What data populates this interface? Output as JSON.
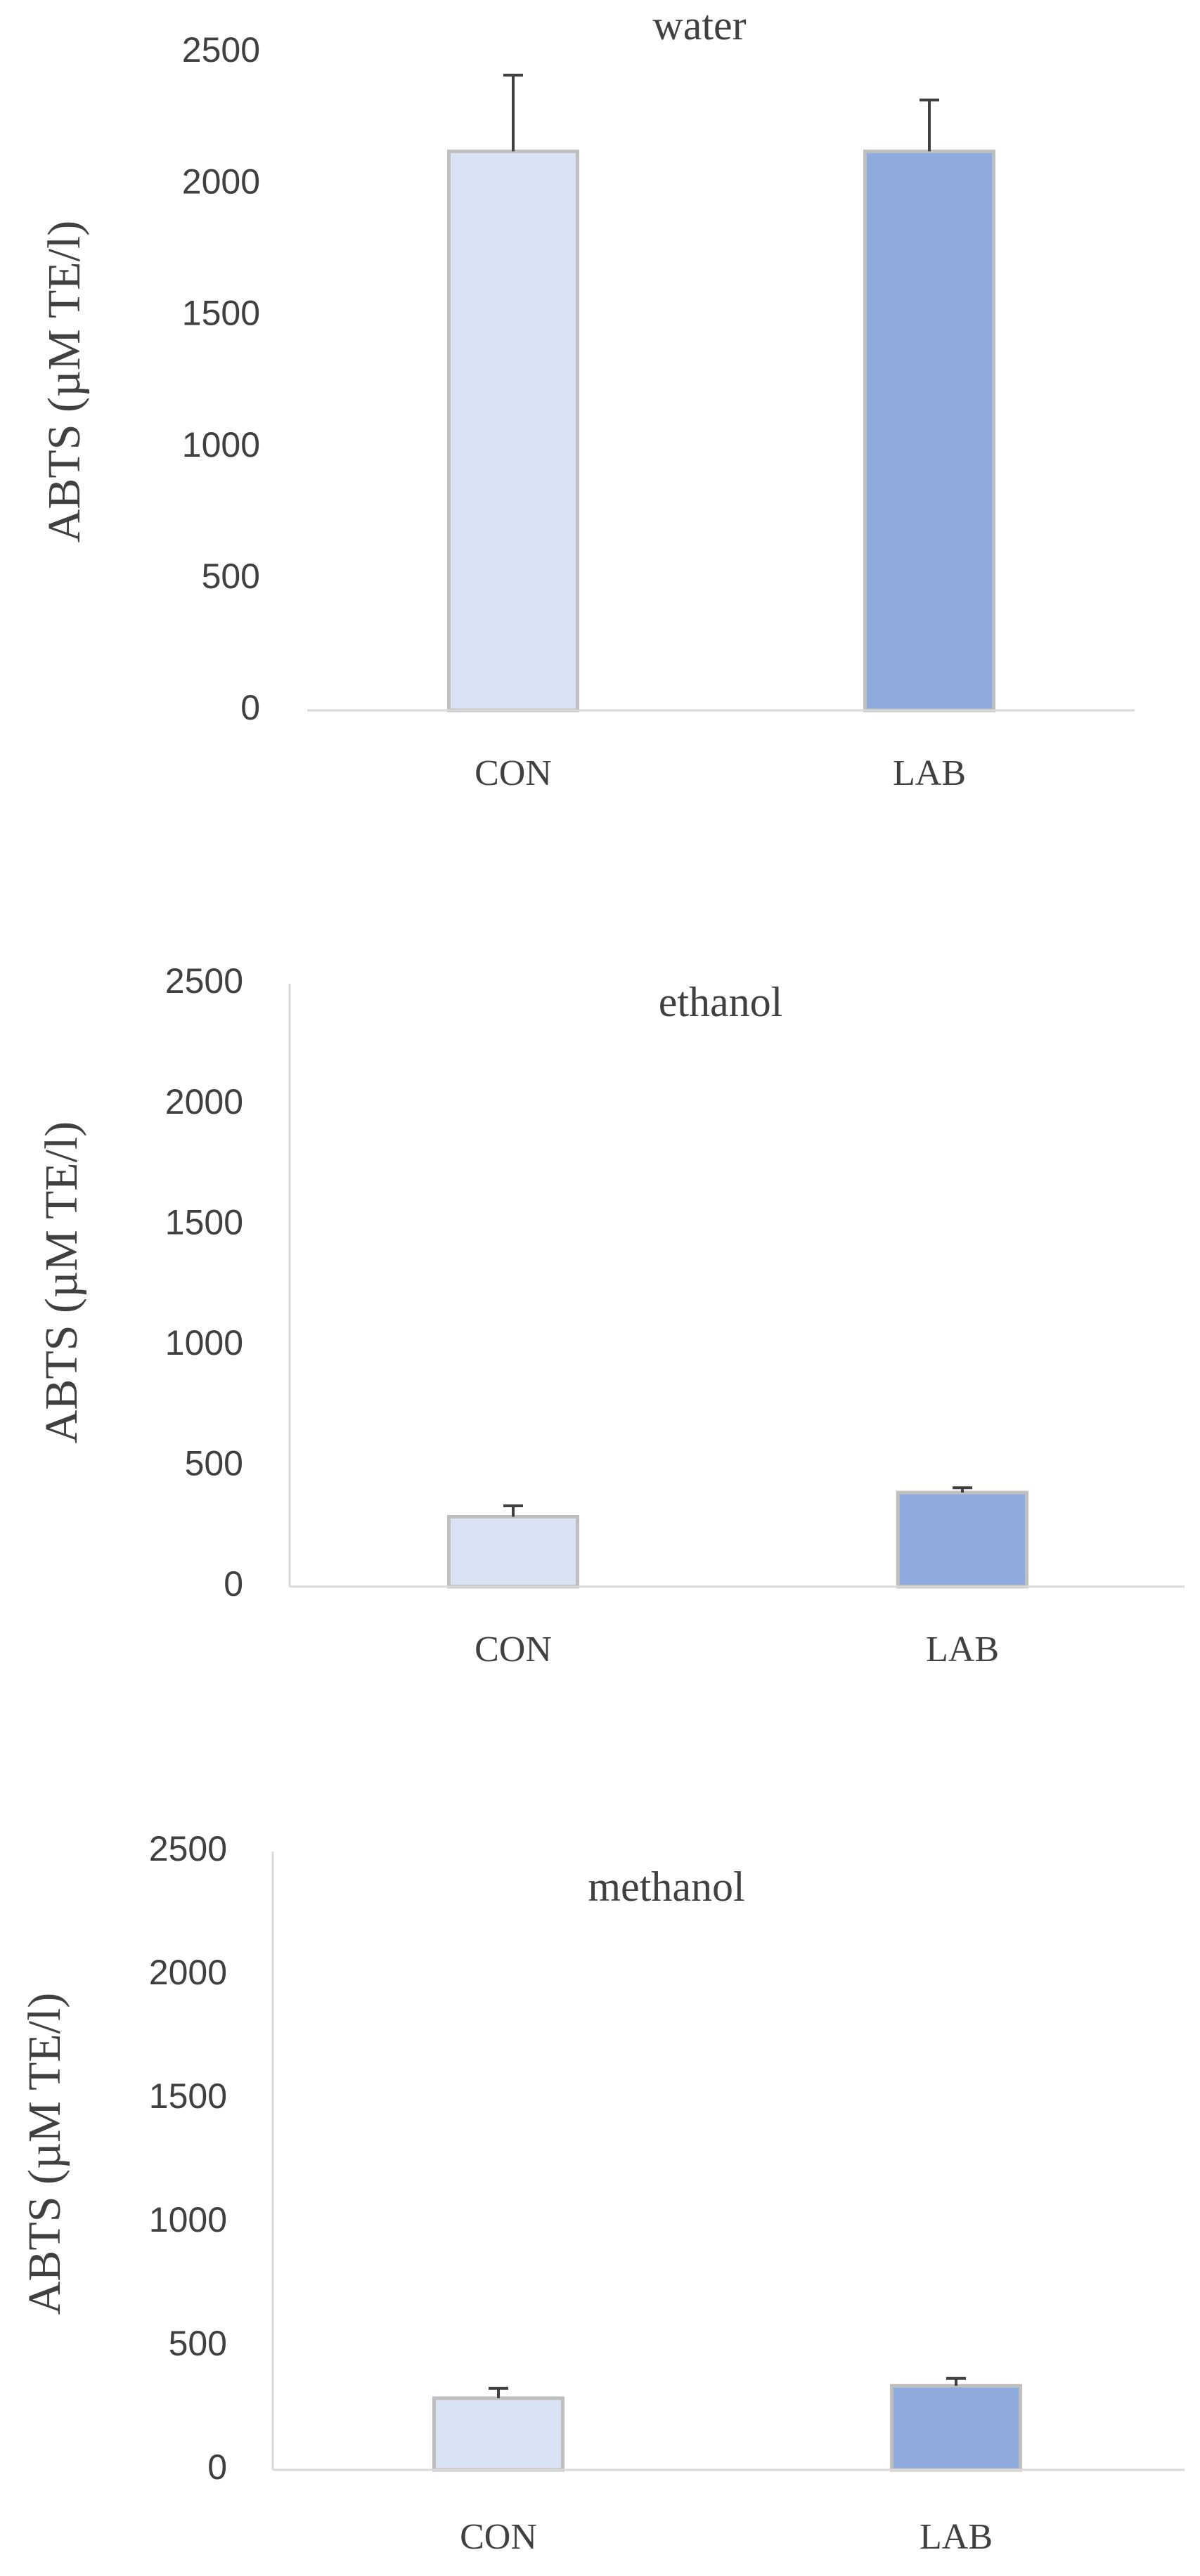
{
  "chart_data": [
    {
      "type": "bar",
      "title": "water",
      "y_label": "ABTS (µM TE/l)",
      "categories": [
        "CON",
        "LAB"
      ],
      "values": [
        2125,
        2125
      ],
      "errors": [
        290,
        195
      ],
      "colors": [
        "#dae3f3",
        "#8faadc"
      ],
      "ylim": [
        0,
        2500
      ],
      "yticks": [
        0,
        500,
        1000,
        1500,
        2000,
        2500
      ],
      "y_axis_line": false
    },
    {
      "type": "bar",
      "title": "ethanol",
      "y_label": "ABTS (µM TE/l)",
      "categories": [
        "CON",
        "LAB"
      ],
      "values": [
        290,
        390
      ],
      "errors": [
        45,
        20
      ],
      "colors": [
        "#dae3f3",
        "#8faadc"
      ],
      "ylim": [
        0,
        2500
      ],
      "yticks": [
        0,
        500,
        1000,
        1500,
        2000,
        2500
      ],
      "y_axis_line": true
    },
    {
      "type": "bar",
      "title": "methanol",
      "y_label": "ABTS (µM TE/l)",
      "categories": [
        "CON",
        "LAB"
      ],
      "values": [
        290,
        340
      ],
      "errors": [
        40,
        30
      ],
      "colors": [
        "#dae3f3",
        "#8faadc"
      ],
      "ylim": [
        0,
        2500
      ],
      "yticks": [
        0,
        500,
        1000,
        1500,
        2000,
        2500
      ],
      "y_axis_line": true
    }
  ]
}
